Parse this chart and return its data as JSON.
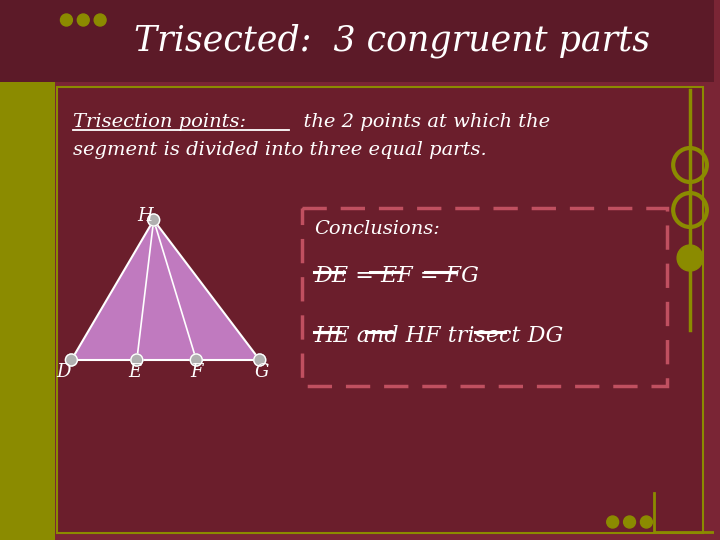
{
  "title": "Trisected:  3 congruent parts",
  "title_color": "#FFFFFF",
  "title_bg_color": "#5C1A28",
  "bg_color": "#7A2535",
  "left_bar_color": "#8B8B00",
  "content_bg_color": "#6B1E2C",
  "conclusions_title": "Conclusions:",
  "eq_line": "DE = EF = FG",
  "trisect_line": "HE and HF trisect DG",
  "triangle_fill": "#C07ABF",
  "triangle_stroke": "#FFFFFF",
  "point_color": "#B0B0B0",
  "dashed_box_color": "#C05060",
  "white": "#FFFFFF"
}
